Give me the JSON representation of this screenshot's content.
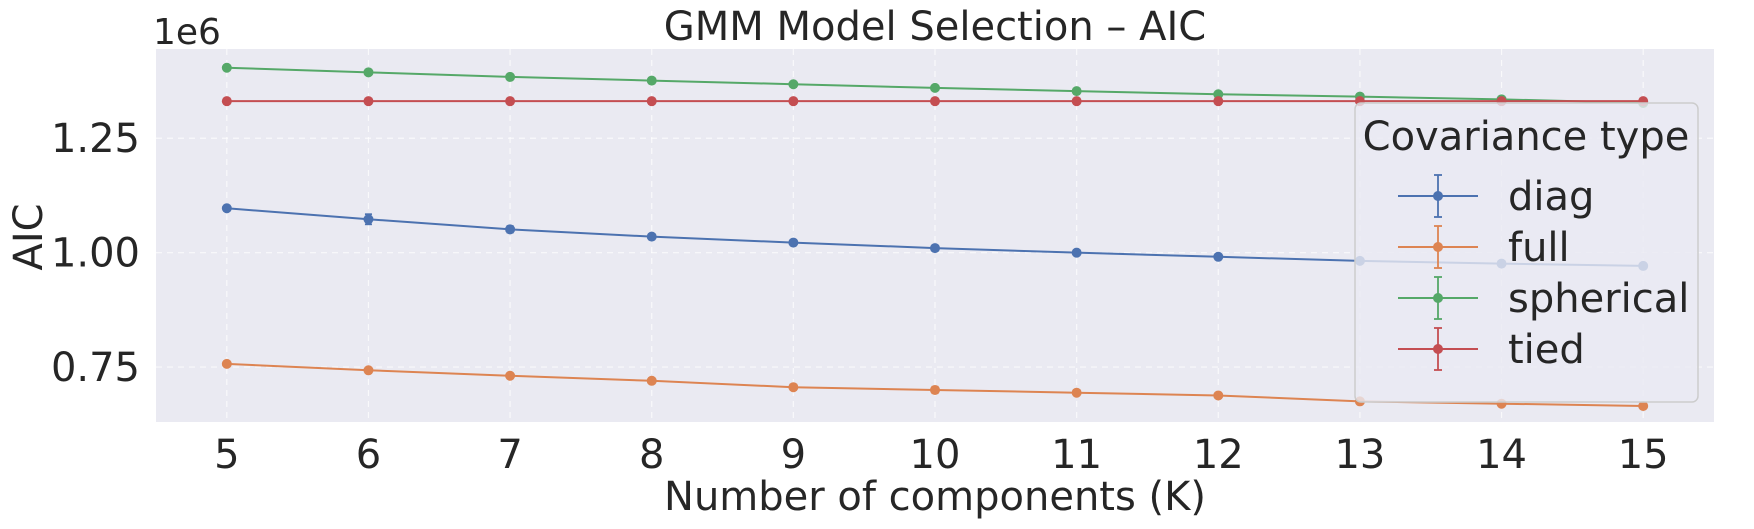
{
  "chart_data": {
    "type": "line",
    "title": "GMM Model Selection – AIC",
    "xlabel": "Number of components (K)",
    "ylabel": "AIC",
    "y_offset_label": "1e6",
    "x": [
      5,
      6,
      7,
      8,
      9,
      10,
      11,
      12,
      13,
      14,
      15
    ],
    "xlim": [
      4.5,
      15.5
    ],
    "ylim": [
      630000,
      1445000
    ],
    "y_ticks": [
      750000,
      1000000,
      1250000
    ],
    "y_tick_labels": [
      "0.75",
      "1.00",
      "1.25"
    ],
    "grid": true,
    "legend": {
      "title": "Covariance type",
      "placement": "right"
    },
    "series": [
      {
        "name": "diag",
        "color": "#4c72b0",
        "values": [
          1097000,
          1073000,
          1051000,
          1035000,
          1022000,
          1010000,
          1000000,
          991000,
          982000,
          976000,
          971000
        ],
        "errors": [
          4000,
          11000,
          7000,
          3000,
          3000,
          3000,
          3000,
          3000,
          3000,
          3000,
          3000
        ]
      },
      {
        "name": "full",
        "color": "#dd8452",
        "values": [
          757000,
          743000,
          731000,
          720000,
          706000,
          700000,
          694000,
          688000,
          675000,
          670000,
          665000
        ],
        "errors": [
          3000,
          3000,
          3000,
          3000,
          4000,
          7000,
          3000,
          4000,
          5000,
          3000,
          4000
        ]
      },
      {
        "name": "spherical",
        "color": "#55a868",
        "values": [
          1404000,
          1394000,
          1384000,
          1376000,
          1368000,
          1360000,
          1353000,
          1346000,
          1341000,
          1335000,
          1327000
        ],
        "errors": [
          2000,
          2000,
          2000,
          2000,
          2000,
          2000,
          2000,
          2000,
          2000,
          2000,
          2000
        ]
      },
      {
        "name": "tied",
        "color": "#c44e52",
        "values": [
          1331000,
          1331000,
          1331000,
          1331000,
          1331000,
          1331000,
          1331000,
          1331000,
          1331000,
          1331000,
          1331000
        ],
        "errors": [
          1500,
          1500,
          1500,
          1500,
          1500,
          1500,
          1500,
          1500,
          1500,
          1500,
          1500
        ]
      }
    ]
  }
}
